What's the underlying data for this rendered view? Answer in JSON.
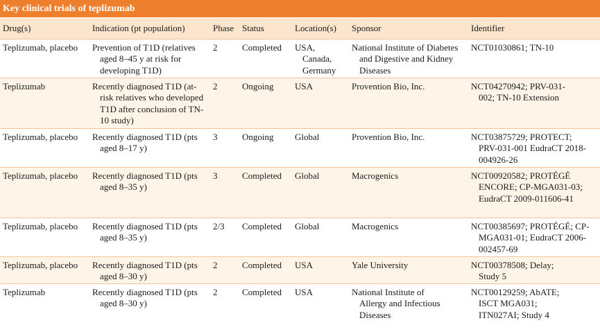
{
  "title": "Key clinical trials of teplizumab",
  "headers": [
    "Drug(s)",
    "Indication (pt population)",
    "Phase",
    "Status",
    "Location(s)",
    "Sponsor",
    "Identifier"
  ],
  "rows": [
    {
      "drug": "Teplizumab, placebo",
      "indication": "Prevention of T1D (relatives aged 8–45 y at risk for developing T1D)",
      "phase": "2",
      "status": "Completed",
      "location": "USA, Canada, Germany",
      "sponsor": "National Institute of Diabetes and Digestive and Kidney Diseases",
      "identifier": "NCT01030861; TN-10"
    },
    {
      "drug": "Teplizumab",
      "indication": "Recently diagnosed T1D (at-risk relatives who developed T1D after conclusion of TN-10 study)",
      "phase": "2",
      "status": "Ongoing",
      "location": "USA",
      "sponsor": "Provention Bio, Inc.",
      "identifier": "NCT04270942; PRV-031-002; TN-10 Extension"
    },
    {
      "drug": "Teplizumab, placebo",
      "indication": "Recently diagnosed T1D (pts aged 8–17 y)",
      "phase": "3",
      "status": "Ongoing",
      "location": "Global",
      "sponsor": "Provention Bio, Inc.",
      "identifier": "NCT03875729; PROTECT; PRV-031-001 EudraCT 2018-004926-26"
    },
    {
      "drug": "Teplizumab, placebo",
      "indication": "Recently diagnosed T1D (pts aged 8–35 y)",
      "phase": "3",
      "status": "Completed",
      "location": "Global",
      "sponsor": "Macrogenics",
      "identifier": "NCT00920582; PROTÉGÉ ENCORE; CP-MGA031-03; EudraCT 2009-011606-41"
    },
    {
      "drug": "Teplizumab, placebo",
      "indication": "Recently diagnosed T1D (pts aged 8–35 y)",
      "phase": "2/3",
      "status": "Completed",
      "location": "Global",
      "sponsor": "Macrogenics",
      "identifier": "NCT00385697; PROTÉGÉ; CP-MGA031-01; EudraCT 2006-002457-69"
    },
    {
      "drug": "Teplizumab, placebo",
      "indication": "Recently diagnosed T1D (pts aged 8–30 y)",
      "phase": "2",
      "status": "Completed",
      "location": "USA",
      "sponsor": "Yale University",
      "identifier": "NCT00378508; Delay; Study 5"
    },
    {
      "drug": "Teplizumab",
      "indication": "Recently diagnosed T1D (pts aged 8–30 y)",
      "phase": "2",
      "status": "Completed",
      "location": "USA",
      "sponsor": "National Institute of Allergy and Infectious Diseases",
      "identifier": "NCT00129259; AbATE; ISCT MGA031; ITN027AI; Study 4"
    }
  ],
  "colors": {
    "title_bg": "#ee7f2d",
    "header_bg": "#fbe6cd",
    "alt_row_bg": "#fef4e8",
    "rule": "#f1c397"
  }
}
